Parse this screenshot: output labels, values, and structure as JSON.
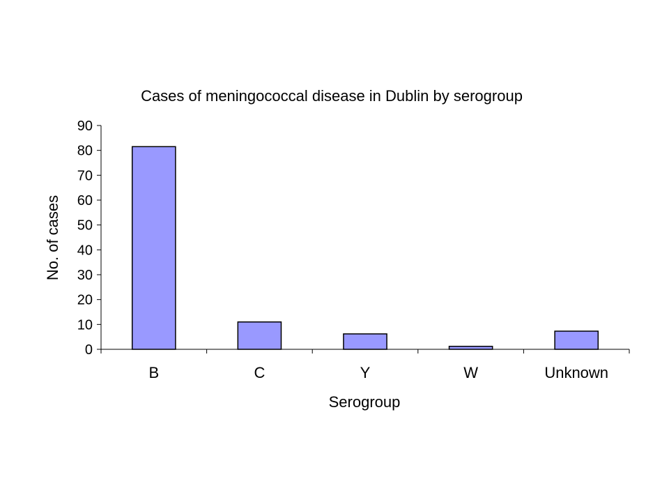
{
  "chart_data": {
    "type": "bar",
    "title": "Cases of meningococcal disease in Dublin by serogroup",
    "xlabel": "Serogroup",
    "ylabel": "No. of cases",
    "categories": [
      "B",
      "C",
      "Y",
      "W",
      "Unknown"
    ],
    "values": [
      81.5,
      11,
      6.2,
      1.2,
      7.3
    ],
    "ylim": [
      0,
      90
    ],
    "yticks": [
      0,
      10,
      20,
      30,
      40,
      50,
      60,
      70,
      80,
      90
    ],
    "grid": false,
    "legend": "none",
    "bar_color": "#9999ff",
    "bar_edge_color": "#000000"
  }
}
